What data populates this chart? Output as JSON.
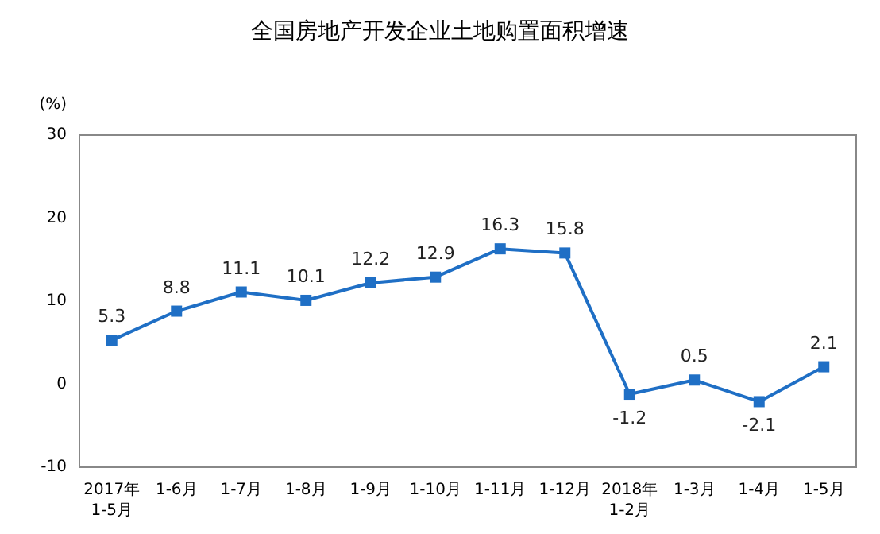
{
  "chart_data": {
    "type": "line",
    "title": "全国房地产开发企业土地购置面积增速",
    "ylabel": "(%)",
    "categories": [
      "2017年\n1-5月",
      "1-6月",
      "1-7月",
      "1-8月",
      "1-9月",
      "1-10月",
      "1-11月",
      "1-12月",
      "2018年\n1-2月",
      "1-3月",
      "1-4月",
      "1-5月"
    ],
    "series": [
      {
        "color": "#1f6fc5",
        "values": [
          5.3,
          8.8,
          11.1,
          10.1,
          12.2,
          12.9,
          16.3,
          15.8,
          -1.2,
          0.5,
          -2.1,
          2.1
        ]
      }
    ],
    "ylim": [
      -10,
      30
    ],
    "yticks": [
      -10,
      0,
      10,
      20,
      30
    ],
    "grid": false,
    "marker": "square",
    "line_style": "solid",
    "data_labels": true
  }
}
